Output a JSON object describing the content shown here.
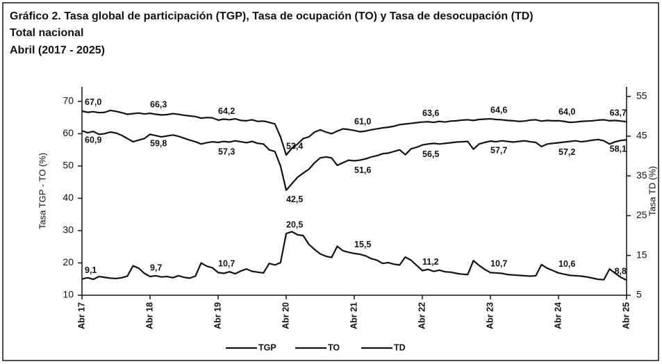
{
  "chart_data": {
    "type": "line",
    "title": "Gráfico 2. Tasa global de participación (TGP), Tasa de ocupación (TO) y Tasa de desocupación (TD)",
    "subtitle": [
      "Total nacional",
      "Abril (2017 - 2025)"
    ],
    "y_label": "Tasa TGP - TO (%)",
    "y2_label": "Tasa TD (%)",
    "categories": [
      "Abr 17",
      null,
      null,
      null,
      null,
      null,
      null,
      null,
      null,
      null,
      null,
      null,
      "Abr 18",
      null,
      null,
      null,
      null,
      null,
      null,
      null,
      null,
      null,
      null,
      null,
      "Abr 19",
      null,
      null,
      null,
      null,
      null,
      null,
      null,
      null,
      null,
      null,
      null,
      "Abr 20",
      null,
      null,
      null,
      null,
      null,
      null,
      null,
      null,
      null,
      null,
      null,
      "Abr 21",
      null,
      null,
      null,
      null,
      null,
      null,
      null,
      null,
      null,
      null,
      null,
      "Abr 22",
      null,
      null,
      null,
      null,
      null,
      null,
      null,
      null,
      null,
      null,
      null,
      "Abr 23",
      null,
      null,
      null,
      null,
      null,
      null,
      null,
      null,
      null,
      null,
      null,
      "Abr 24",
      null,
      null,
      null,
      null,
      null,
      null,
      null,
      null,
      null,
      null,
      null,
      "Abr 25"
    ],
    "ylim": [
      10,
      74.5
    ],
    "yticks": [
      10,
      20,
      30,
      40,
      50,
      60,
      70
    ],
    "y2lim": [
      5,
      57.4
    ],
    "y2ticks": [
      5,
      15,
      25,
      35,
      45,
      55
    ],
    "legend": "bottom",
    "series": [
      {
        "name": "TGP",
        "color": "#111111",
        "label_side": "above",
        "values": [
          67.0,
          66.6,
          66.8,
          66.5,
          66.6,
          67.2,
          66.9,
          66.5,
          66.0,
          66.2,
          66.4,
          66.1,
          66.3,
          66.0,
          65.8,
          65.9,
          66.2,
          66.0,
          65.7,
          65.5,
          65.3,
          64.8,
          65.0,
          64.9,
          64.2,
          64.5,
          64.3,
          64.6,
          64.1,
          64.0,
          64.3,
          63.8,
          63.9,
          63.5,
          63.0,
          59.0,
          53.4,
          55.5,
          56.8,
          58.5,
          59.0,
          60.5,
          61.2,
          60.5,
          60.0,
          60.8,
          61.5,
          61.3,
          61.0,
          60.6,
          60.8,
          61.2,
          61.5,
          61.8,
          62.0,
          62.3,
          62.8,
          63.0,
          63.2,
          63.4,
          63.6,
          63.7,
          63.5,
          63.8,
          63.6,
          63.9,
          64.0,
          64.2,
          64.3,
          64.1,
          64.4,
          64.5,
          64.6,
          64.4,
          64.3,
          64.1,
          64.0,
          63.8,
          63.9,
          64.2,
          64.3,
          63.9,
          64.1,
          64.0,
          64.0,
          63.8,
          63.5,
          63.6,
          63.8,
          63.9,
          64.0,
          64.2,
          64.3,
          64.0,
          64.1,
          63.9,
          63.7
        ],
        "value_labels": [
          "67,0",
          null,
          null,
          null,
          null,
          null,
          null,
          null,
          null,
          null,
          null,
          null,
          "66,3",
          null,
          null,
          null,
          null,
          null,
          null,
          null,
          null,
          null,
          null,
          null,
          "64,2",
          null,
          null,
          null,
          null,
          null,
          null,
          null,
          null,
          null,
          null,
          null,
          "53,4",
          null,
          null,
          null,
          null,
          null,
          null,
          null,
          null,
          null,
          null,
          null,
          "61,0",
          null,
          null,
          null,
          null,
          null,
          null,
          null,
          null,
          null,
          null,
          null,
          "63,6",
          null,
          null,
          null,
          null,
          null,
          null,
          null,
          null,
          null,
          null,
          null,
          "64,6",
          null,
          null,
          null,
          null,
          null,
          null,
          null,
          null,
          null,
          null,
          null,
          "64,0",
          null,
          null,
          null,
          null,
          null,
          null,
          null,
          null,
          null,
          null,
          null,
          "63,7"
        ]
      },
      {
        "name": "TO",
        "color": "#111111",
        "label_side": "below",
        "values": [
          60.9,
          60.3,
          60.7,
          59.8,
          60.0,
          60.5,
          60.2,
          59.5,
          58.5,
          57.5,
          58.0,
          58.5,
          59.8,
          59.4,
          59.0,
          59.3,
          59.6,
          59.2,
          58.6,
          58.0,
          57.5,
          56.8,
          57.2,
          57.5,
          57.3,
          57.6,
          57.4,
          57.8,
          57.5,
          57.2,
          57.6,
          57.0,
          56.8,
          55.0,
          54.5,
          50.0,
          42.5,
          44.5,
          46.5,
          47.8,
          49.0,
          51.0,
          52.5,
          52.8,
          52.5,
          50.2,
          51.0,
          51.8,
          51.6,
          51.8,
          52.2,
          52.8,
          53.2,
          53.8,
          54.0,
          54.5,
          55.0,
          53.5,
          55.3,
          55.8,
          56.5,
          56.8,
          57.0,
          56.8,
          57.0,
          57.2,
          57.4,
          57.5,
          57.6,
          55.2,
          56.8,
          57.3,
          57.7,
          57.5,
          57.8,
          57.6,
          57.4,
          57.6,
          57.8,
          57.5,
          57.3,
          56.0,
          56.8,
          57.0,
          57.2,
          57.4,
          57.6,
          57.8,
          57.5,
          57.7,
          58.0,
          58.2,
          57.8,
          56.8,
          57.5,
          57.9,
          58.1
        ],
        "value_labels": [
          "60,9",
          null,
          null,
          null,
          null,
          null,
          null,
          null,
          null,
          null,
          null,
          null,
          "59,8",
          null,
          null,
          null,
          null,
          null,
          null,
          null,
          null,
          null,
          null,
          null,
          "57,3",
          null,
          null,
          null,
          null,
          null,
          null,
          null,
          null,
          null,
          null,
          null,
          "42,5",
          null,
          null,
          null,
          null,
          null,
          null,
          null,
          null,
          null,
          null,
          null,
          "51,6",
          null,
          null,
          null,
          null,
          null,
          null,
          null,
          null,
          null,
          null,
          null,
          "56,5",
          null,
          null,
          null,
          null,
          null,
          null,
          null,
          null,
          null,
          null,
          null,
          "57,7",
          null,
          null,
          null,
          null,
          null,
          null,
          null,
          null,
          null,
          null,
          null,
          "57,2",
          null,
          null,
          null,
          null,
          null,
          null,
          null,
          null,
          null,
          null,
          null,
          "58,1"
        ]
      },
      {
        "name": "TD",
        "color": "#111111",
        "axis": "y2",
        "label_side": "above",
        "values": [
          9.1,
          9.4,
          9.0,
          9.7,
          9.5,
          9.3,
          9.2,
          9.4,
          9.8,
          12.4,
          11.8,
          10.5,
          9.7,
          9.9,
          9.6,
          9.7,
          9.4,
          9.9,
          9.5,
          9.3,
          9.8,
          13.1,
          12.3,
          11.9,
          10.7,
          10.5,
          10.9,
          10.4,
          11.1,
          11.6,
          11.0,
          10.8,
          10.6,
          13.0,
          12.6,
          13.2,
          20.5,
          21.0,
          20.2,
          20.0,
          17.8,
          16.5,
          15.4,
          14.8,
          14.5,
          17.3,
          16.2,
          15.8,
          15.5,
          15.3,
          14.9,
          14.2,
          13.8,
          13.0,
          13.2,
          12.8,
          12.6,
          14.6,
          13.8,
          12.5,
          11.2,
          11.5,
          11.0,
          11.3,
          10.9,
          10.8,
          10.5,
          10.3,
          10.2,
          13.7,
          12.5,
          11.5,
          10.7,
          10.6,
          10.5,
          10.2,
          10.1,
          10.0,
          9.9,
          9.8,
          9.9,
          12.7,
          11.8,
          11.2,
          10.6,
          10.3,
          10.0,
          9.9,
          9.8,
          9.6,
          9.3,
          9.0,
          8.9,
          11.6,
          10.5,
          9.5,
          8.8
        ],
        "value_labels": [
          "9,1",
          null,
          null,
          null,
          null,
          null,
          null,
          null,
          null,
          null,
          null,
          null,
          "9,7",
          null,
          null,
          null,
          null,
          null,
          null,
          null,
          null,
          null,
          null,
          null,
          "10,7",
          null,
          null,
          null,
          null,
          null,
          null,
          null,
          null,
          null,
          null,
          null,
          "20,5",
          null,
          null,
          null,
          null,
          null,
          null,
          null,
          null,
          null,
          null,
          null,
          "15,5",
          null,
          null,
          null,
          null,
          null,
          null,
          null,
          null,
          null,
          null,
          null,
          "11,2",
          null,
          null,
          null,
          null,
          null,
          null,
          null,
          null,
          null,
          null,
          null,
          "10,7",
          null,
          null,
          null,
          null,
          null,
          null,
          null,
          null,
          null,
          null,
          null,
          "10,6",
          null,
          null,
          null,
          null,
          null,
          null,
          null,
          null,
          null,
          null,
          null,
          "8,8"
        ]
      }
    ]
  }
}
